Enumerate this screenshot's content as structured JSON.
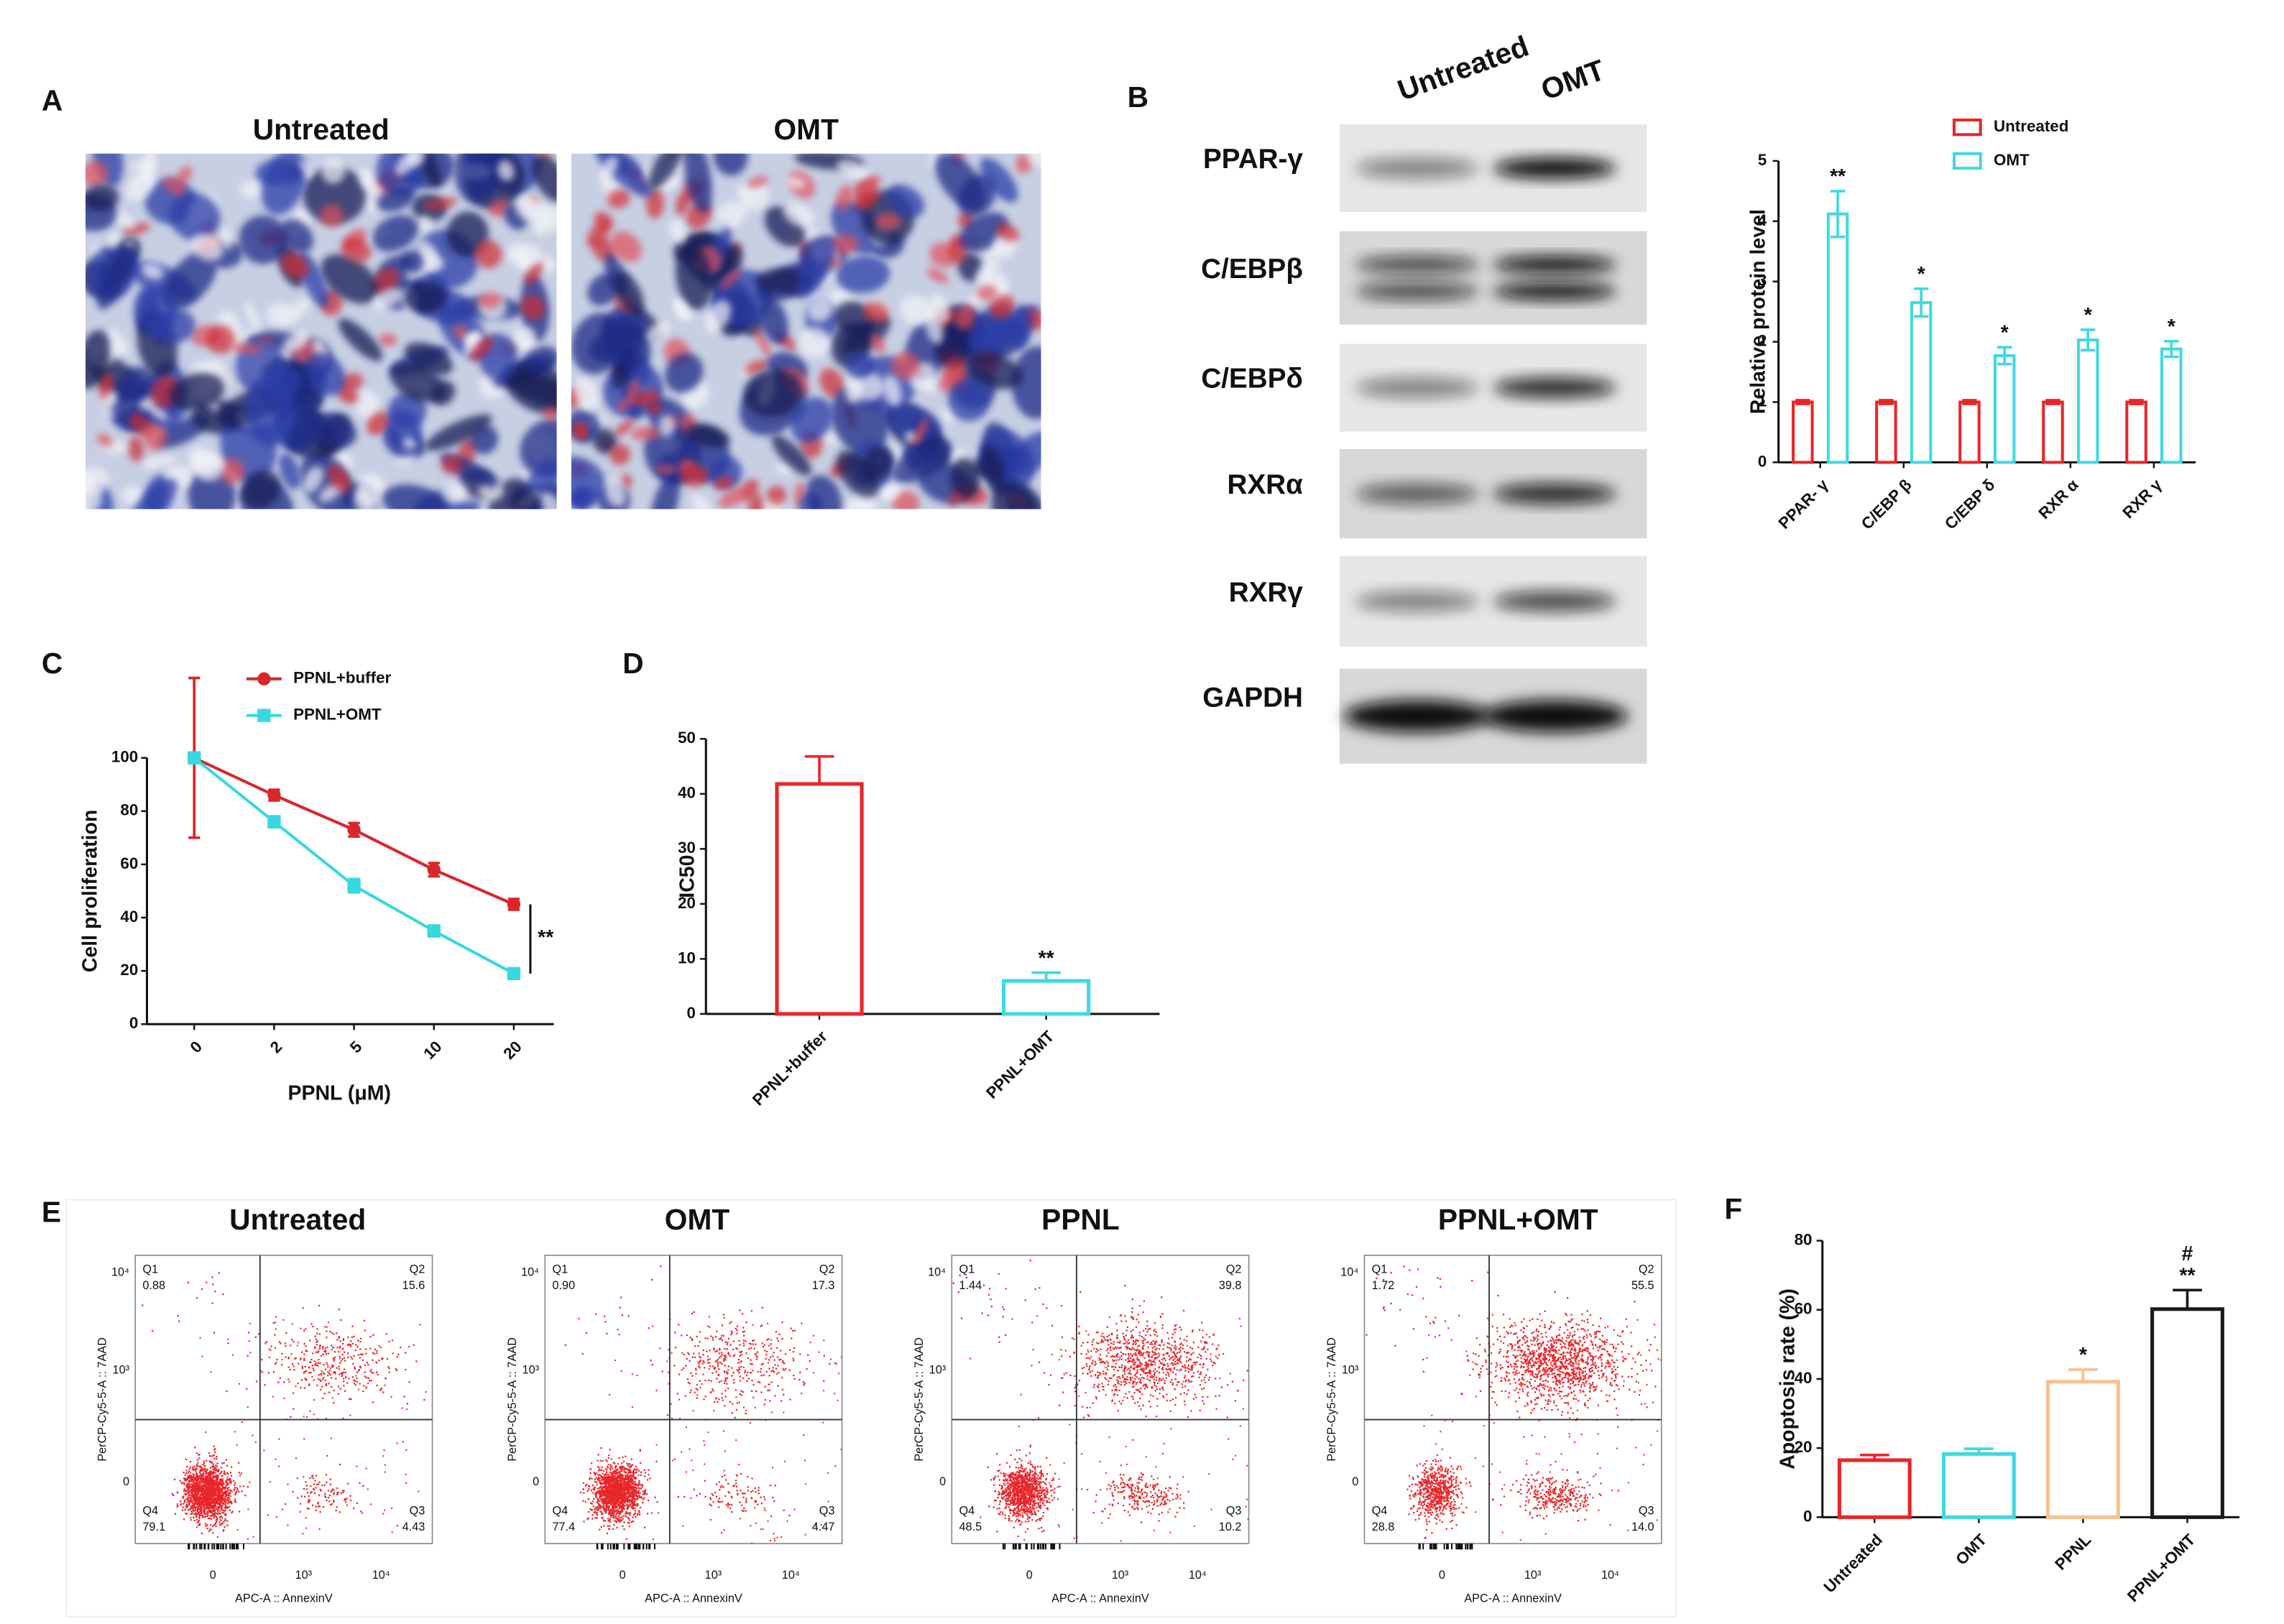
{
  "panel_labels": [
    "A",
    "B",
    "C",
    "D",
    "E",
    "F"
  ],
  "staining": {
    "titles": [
      "Untreated",
      "OMT"
    ]
  },
  "blot": {
    "lanes": [
      "Untreated",
      "OMT"
    ],
    "proteins": [
      "PPAR-γ",
      "C/EBPβ",
      "C/EBPδ",
      "RXRα",
      "RXRγ",
      "GAPDH"
    ]
  },
  "chart_data": [
    {
      "type": "bar",
      "ylabel": "Relative protein level",
      "categories": [
        "PPAR- γ",
        "C/EBP β",
        "C/EBP δ",
        "RXR α",
        "RXR γ"
      ],
      "series": [
        {
          "name": "Untreated",
          "color": "#e8262a",
          "values": [
            1,
            1,
            1,
            1,
            1
          ],
          "errors": [
            0.03,
            0.03,
            0.03,
            0.03,
            0.03
          ]
        },
        {
          "name": "OMT",
          "color": "#3fd9e0",
          "values": [
            4.12,
            2.65,
            1.77,
            2.03,
            1.88
          ],
          "errors": [
            0.38,
            0.23,
            0.14,
            0.17,
            0.13
          ],
          "significance": [
            "**",
            "*",
            "*",
            "*",
            "*"
          ]
        }
      ],
      "ylim": [
        0,
        5
      ],
      "yticks": [
        0,
        1,
        2,
        3,
        4,
        5
      ],
      "legend": "top"
    },
    {
      "type": "line",
      "xlabel": "PPNL (μM)",
      "ylabel": "Cell proliferation",
      "categories": [
        "0",
        "2",
        "5",
        "10",
        "20"
      ],
      "series": [
        {
          "name": "PPNL+buffer",
          "color": "#d9262b",
          "marker": "circle",
          "values": [
            100,
            86,
            73,
            58,
            45
          ],
          "errors": [
            30,
            2,
            2.5,
            2.5,
            2
          ]
        },
        {
          "name": "PPNL+OMT",
          "color": "#37d8e0",
          "marker": "square",
          "values": [
            100,
            76,
            52,
            35,
            19
          ],
          "errors": [
            2,
            2,
            2.5,
            2,
            1.5
          ]
        }
      ],
      "ylim": [
        0,
        100
      ],
      "yticks": [
        0,
        20,
        40,
        60,
        80,
        100
      ],
      "annotation": "**",
      "legend": "top"
    },
    {
      "type": "bar",
      "ylabel": "IC50",
      "categories": [
        "PPNL+buffer",
        "PPNL+OMT"
      ],
      "values": [
        41.8,
        6
      ],
      "errors": [
        5,
        1.5
      ],
      "colors": [
        "#e8262a",
        "#3fd9e0"
      ],
      "significance": [
        null,
        "**"
      ],
      "ylim": [
        0,
        50
      ],
      "yticks": [
        0,
        10,
        20,
        30,
        40,
        50
      ]
    },
    {
      "type": "bar",
      "ylabel": "Apoptosis rate (%)",
      "categories": [
        "Untreated",
        "OMT",
        "PPNL",
        "PPNL+OMT"
      ],
      "values": [
        16.5,
        18.3,
        39.2,
        60.2
      ],
      "errors": [
        1.5,
        1.5,
        3.5,
        5.5
      ],
      "colors": [
        "#e8262a",
        "#3fd9e0",
        "#f7c18e",
        "#1a1a1a"
      ],
      "significance": [
        null,
        null,
        "*",
        "**"
      ],
      "significance2": [
        null,
        null,
        null,
        "#"
      ],
      "ylim": [
        0,
        80
      ],
      "yticks": [
        0,
        20,
        40,
        60,
        80
      ]
    }
  ],
  "flow": {
    "xlabel": "APC-A :: AnnexinV",
    "ylabel": "PerCP-Cy5-5-A :: 7AAD",
    "xticks": [
      "0",
      "10³",
      "10⁴"
    ],
    "yticks": [
      "0",
      "10³",
      "10⁴"
    ],
    "plots": [
      {
        "title": "Untreated",
        "quadrants": [
          {
            "name": "Q1",
            "value": "0.88"
          },
          {
            "name": "Q2",
            "value": "15.6"
          },
          {
            "name": "Q3",
            "value": "4.43"
          },
          {
            "name": "Q4",
            "value": "79.1"
          }
        ]
      },
      {
        "title": "OMT",
        "quadrants": [
          {
            "name": "Q1",
            "value": "0.90"
          },
          {
            "name": "Q2",
            "value": "17.3"
          },
          {
            "name": "Q3",
            "value": "4.47"
          },
          {
            "name": "Q4",
            "value": "77.4"
          }
        ]
      },
      {
        "title": "PPNL",
        "quadrants": [
          {
            "name": "Q1",
            "value": "1.44"
          },
          {
            "name": "Q2",
            "value": "39.8"
          },
          {
            "name": "Q3",
            "value": "10.2"
          },
          {
            "name": "Q4",
            "value": "48.5"
          }
        ]
      },
      {
        "title": "PPNL+OMT",
        "quadrants": [
          {
            "name": "Q1",
            "value": "1.72"
          },
          {
            "name": "Q2",
            "value": "55.5"
          },
          {
            "name": "Q3",
            "value": "14.0"
          },
          {
            "name": "Q4",
            "value": "28.8"
          }
        ]
      }
    ]
  }
}
